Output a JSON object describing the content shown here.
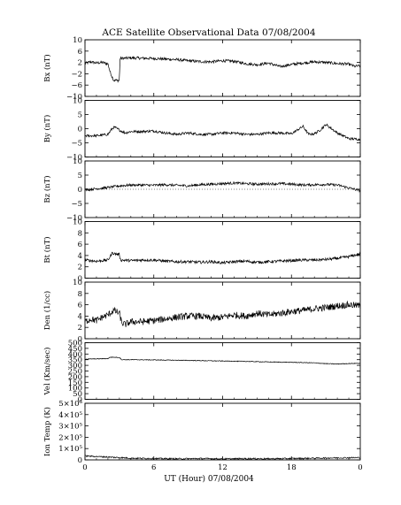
{
  "chart_data": {
    "type": "line",
    "title": "ACE Satellite Observational Data   07/08/2004",
    "xlabel": "UT (Hour)   07/08/2004",
    "x_ticks": [
      "0",
      "6",
      "12",
      "18",
      "0"
    ],
    "xlim": [
      0,
      24
    ],
    "panels": [
      {
        "key": "bx",
        "ylabel": "Bx (nT)",
        "ylim": [
          -10,
          10
        ],
        "y_ticks": [
          10,
          6,
          2,
          -2,
          -6,
          -10
        ],
        "y_tick_labels": [
          "10",
          "6",
          "2",
          "−2",
          "−6",
          "−10"
        ],
        "zero_line": false,
        "series": {
          "x": [
            0,
            0.5,
            1.0,
            1.5,
            2.0,
            2.2,
            2.5,
            3.0,
            3.05,
            3.5,
            4,
            5,
            6,
            7,
            8,
            9,
            10,
            11,
            12,
            13,
            14,
            15,
            16,
            17,
            18,
            19,
            20,
            21,
            22,
            23,
            23.5,
            24
          ],
          "y": [
            1.6,
            2.2,
            1.8,
            2.0,
            1.5,
            -1.5,
            -4.3,
            -4.4,
            3.4,
            3.5,
            3.6,
            3.5,
            3.4,
            3.2,
            3.0,
            2.6,
            2.3,
            2.2,
            2.6,
            2.4,
            1.6,
            1.2,
            1.8,
            0.5,
            1.3,
            1.8,
            2.2,
            2.0,
            1.6,
            1.4,
            0.6,
            0.8
          ],
          "noise": 0.5
        }
      },
      {
        "key": "by",
        "ylabel": "By (nT)",
        "ylim": [
          -10,
          10
        ],
        "y_ticks": [
          10,
          5,
          0,
          -5,
          -10
        ],
        "y_tick_labels": [
          "10",
          "5",
          "0",
          "−5",
          "−10"
        ],
        "zero_line": false,
        "series": {
          "x": [
            0,
            1,
            2,
            2.4,
            2.6,
            3.0,
            3.5,
            4,
            5,
            6,
            7,
            8,
            9,
            10,
            11,
            12,
            13,
            14,
            15,
            16,
            17,
            18,
            19,
            19.5,
            20,
            20.5,
            21,
            22,
            22.5,
            23,
            24
          ],
          "y": [
            -2.5,
            -2.5,
            -2.0,
            0.2,
            0.5,
            -0.5,
            -1.5,
            -1.0,
            -1.0,
            -0.8,
            -1.5,
            -2.0,
            -1.5,
            -2.0,
            -2.0,
            -1.5,
            -1.5,
            -2.0,
            -2.0,
            -1.5,
            -1.5,
            -1.8,
            0.8,
            -2.0,
            -1.8,
            -0.5,
            1.5,
            -1.5,
            -2.5,
            -3.5,
            -3.8
          ],
          "noise": 0.45
        }
      },
      {
        "key": "bz",
        "ylabel": "Bz (nT)",
        "ylim": [
          -10,
          10
        ],
        "y_ticks": [
          10,
          5,
          0,
          -5,
          -10
        ],
        "y_tick_labels": [
          "10",
          "5",
          "0",
          "−5",
          "−10"
        ],
        "zero_line": true,
        "series": {
          "x": [
            0,
            1,
            2,
            3,
            4,
            5,
            6,
            7,
            8,
            9,
            10,
            11,
            12,
            13,
            14,
            15,
            16,
            17,
            18,
            19,
            20,
            21,
            22,
            23,
            24
          ],
          "y": [
            -0.2,
            0.2,
            0.6,
            1.2,
            1.5,
            1.5,
            1.4,
            1.6,
            1.4,
            1.2,
            1.6,
            1.8,
            2.0,
            2.2,
            2.0,
            1.8,
            1.9,
            2.0,
            1.8,
            1.5,
            1.6,
            1.7,
            1.5,
            0.5,
            -0.5
          ],
          "noise": 0.45
        }
      },
      {
        "key": "bt",
        "ylabel": "Bt (nT)",
        "ylim": [
          0,
          10
        ],
        "y_ticks": [
          10,
          8,
          6,
          4,
          2,
          0
        ],
        "y_tick_labels": [
          "10",
          "8",
          "6",
          "4",
          "2",
          "0"
        ],
        "zero_line": false,
        "series": {
          "x": [
            0,
            1,
            2,
            2.4,
            2.6,
            3.0,
            3.1,
            4,
            5,
            6,
            7,
            8,
            9,
            10,
            11,
            12,
            13,
            14,
            15,
            16,
            17,
            18,
            19,
            20,
            21,
            22,
            23,
            24
          ],
          "y": [
            3.2,
            3.0,
            3.2,
            4.5,
            4.3,
            4.2,
            3.2,
            3.1,
            3.2,
            3.2,
            3.0,
            2.9,
            2.9,
            2.8,
            2.9,
            2.7,
            2.9,
            3.0,
            2.8,
            2.9,
            3.0,
            3.1,
            3.2,
            3.2,
            3.3,
            3.5,
            3.8,
            4.3
          ],
          "noise": 0.25
        }
      },
      {
        "key": "den",
        "ylabel": "Den (1/cc)",
        "ylim": [
          0,
          10
        ],
        "y_ticks": [
          10,
          8,
          6,
          4,
          2,
          0
        ],
        "y_tick_labels": [
          "10",
          "8",
          "6",
          "4",
          "2",
          "0"
        ],
        "zero_line": false,
        "series": {
          "x": [
            0,
            0.5,
            1,
            1.5,
            2,
            2.5,
            3,
            3.2,
            3.5,
            4,
            5,
            6,
            7,
            8,
            9,
            10,
            11,
            12,
            13,
            14,
            15,
            16,
            17,
            18,
            19,
            20,
            21,
            22,
            23,
            24
          ],
          "y": [
            3.0,
            3.5,
            3.2,
            3.8,
            4.2,
            5.0,
            4.5,
            2.8,
            2.5,
            3.0,
            3.0,
            3.2,
            3.5,
            3.8,
            4.0,
            4.0,
            3.6,
            3.8,
            4.2,
            4.0,
            4.5,
            4.2,
            4.5,
            4.8,
            5.0,
            5.3,
            5.5,
            5.8,
            6.0,
            5.8
          ],
          "noise": 0.6
        }
      },
      {
        "key": "vel",
        "ylabel": "Vel (Km/sec)",
        "ylim": [
          0,
          500
        ],
        "y_ticks": [
          500,
          450,
          400,
          350,
          300,
          250,
          200,
          150,
          100,
          50,
          0
        ],
        "y_tick_labels": [
          "500",
          "450",
          "400",
          "350",
          "300",
          "250",
          "200",
          "150",
          "100",
          "50",
          "0"
        ],
        "zero_line": false,
        "series": {
          "x": [
            0,
            1,
            2,
            2.2,
            3,
            3.2,
            4,
            6,
            8,
            10,
            12,
            14,
            16,
            18,
            20,
            21,
            22,
            23,
            24
          ],
          "y": [
            355,
            357,
            360,
            372,
            370,
            350,
            350,
            348,
            345,
            342,
            338,
            335,
            330,
            327,
            322,
            315,
            312,
            316,
            318
          ],
          "noise": 3
        }
      },
      {
        "key": "temp",
        "ylabel": "Ion Temp (K)",
        "ylim": [
          0,
          500000
        ],
        "y_ticks": [
          500000,
          400000,
          300000,
          200000,
          100000,
          0
        ],
        "y_tick_labels": [
          "5×10⁵",
          "4×10⁵",
          "3×10⁵",
          "2×10⁵",
          "1×10⁵",
          "0"
        ],
        "zero_line": false,
        "series": {
          "x": [
            0,
            1,
            2,
            3,
            4,
            6,
            8,
            10,
            12,
            14,
            16,
            18,
            20,
            22,
            24
          ],
          "y": [
            35000,
            30000,
            25000,
            20000,
            15000,
            12000,
            10000,
            12000,
            9000,
            11000,
            10000,
            12000,
            15000,
            18000,
            20000
          ],
          "noise": 6000
        }
      }
    ]
  }
}
